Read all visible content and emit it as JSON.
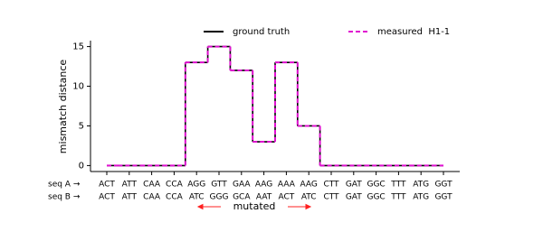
{
  "chart_data": {
    "type": "step",
    "y_label": "mismatch distance",
    "categories": [
      "ACT",
      "ATT",
      "CAA",
      "CCA",
      "AGG",
      "GTT",
      "GAA",
      "AAG",
      "AAA",
      "AAG",
      "CTT",
      "GAT",
      "GGC",
      "TTT",
      "ATG",
      "GGT"
    ],
    "row_a_label": "seq A →",
    "row_b": {
      "label": "seq B →",
      "color": "#1f1fff",
      "labels": [
        "ACT",
        "ATT",
        "CAA",
        "CCA",
        "ATC",
        "GGG",
        "GCA",
        "AAT",
        "ACT",
        "ATC",
        "CTT",
        "GAT",
        "GGC",
        "TTT",
        "ATG",
        "GGT"
      ],
      "colors": [
        "#1f1fff",
        "#1f1fff",
        "#1f1fff",
        "#1f1fff",
        "#ff2020",
        "#ff2020",
        "#ff2020",
        "#ff2020",
        "#ff2020",
        "#ff2020",
        "#1f1fff",
        "#1f1fff",
        "#1f1fff",
        "#1f1fff",
        "#1f1fff",
        "#1f1fff"
      ]
    },
    "annotation": {
      "text": "mutated",
      "color": "#ff2020"
    },
    "series": [
      {
        "name": "ground truth",
        "color": "#000000",
        "dash": false,
        "values": [
          0,
          0,
          0,
          0,
          13,
          15,
          12,
          3,
          13,
          5,
          0,
          0,
          0,
          0,
          0,
          0
        ]
      },
      {
        "name": "measured  H1-1",
        "color": "#e010d0",
        "dash": true,
        "values": [
          0,
          0,
          0,
          0,
          13,
          15,
          12,
          3,
          13,
          5,
          0,
          0,
          0,
          0,
          0,
          0
        ]
      }
    ],
    "ylim": [
      -0.75,
      15.75
    ],
    "yticks": [
      0,
      5,
      10,
      15
    ]
  }
}
